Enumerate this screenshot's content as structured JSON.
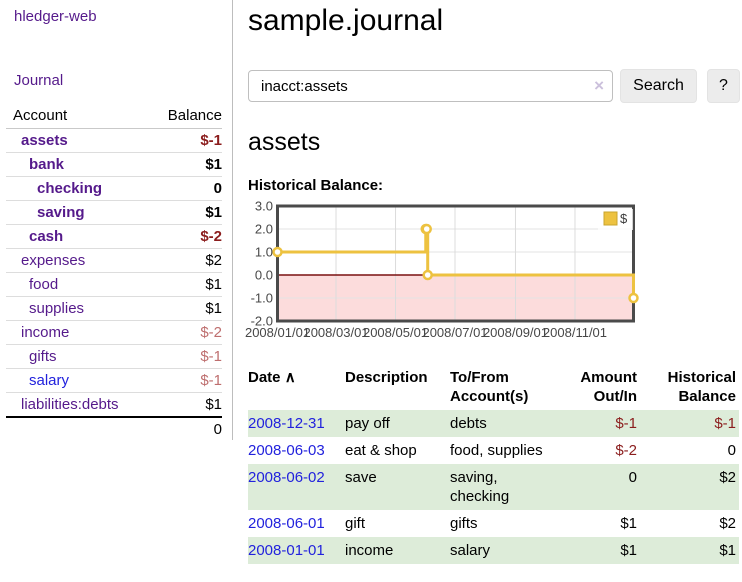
{
  "app": {
    "title": "hledger-web",
    "nav_journal": "Journal"
  },
  "colors": {
    "link_purple": "#551a8b",
    "link_blue": "#2222dd",
    "negative_strong": "#8b1d1d",
    "negative_light": "#be6e6e",
    "row_stripe_green": "#ddecd9",
    "chart_series_gold": "#edc240"
  },
  "sidebar": {
    "header": {
      "account": "Account",
      "balance": "Balance"
    },
    "accounts": [
      {
        "name": "assets",
        "balance": "$-1",
        "depth": 1,
        "bold": true,
        "negative": true
      },
      {
        "name": "bank",
        "balance": "$1",
        "depth": 2,
        "bold": true,
        "negative": false
      },
      {
        "name": "checking",
        "balance": "0",
        "depth": 3,
        "bold": true,
        "negative": false
      },
      {
        "name": "saving",
        "balance": "$1",
        "depth": 3,
        "bold": true,
        "negative": false
      },
      {
        "name": "cash",
        "balance": "$-2",
        "depth": 2,
        "bold": true,
        "negative": true
      },
      {
        "name": "expenses",
        "balance": "$2",
        "depth": 1,
        "bold": false,
        "negative": false
      },
      {
        "name": "food",
        "balance": "$1",
        "depth": 2,
        "bold": false,
        "negative": false
      },
      {
        "name": "supplies",
        "balance": "$1",
        "depth": 2,
        "bold": false,
        "negative": false
      },
      {
        "name": "income",
        "balance": "$-2",
        "depth": 1,
        "bold": false,
        "negative": true
      },
      {
        "name": "gifts",
        "balance": "$-1",
        "depth": 2,
        "bold": false,
        "negative": true
      },
      {
        "name": "salary",
        "balance": "$-1",
        "depth": 2,
        "bold": false,
        "negative": true,
        "unvisited": true
      },
      {
        "name": "liabilities:debts",
        "balance": "$1",
        "depth": 1,
        "bold": false,
        "negative": false
      }
    ],
    "total": "0"
  },
  "header": {
    "title": "sample.journal"
  },
  "search": {
    "value": "inacct:assets",
    "clear_icon": "×",
    "button_label": "Search",
    "help_label": "?"
  },
  "account_page": {
    "heading": "assets",
    "chart_title": "Historical Balance:"
  },
  "chart_data": {
    "type": "line",
    "title": "Historical Balance",
    "x_range": [
      "2008/01/01",
      "2008/12/31"
    ],
    "ylim": [
      -2,
      3
    ],
    "y_ticks": [
      3.0,
      2.0,
      1.0,
      0.0,
      -1.0,
      -2.0
    ],
    "x_ticks": [
      "2008/01/01",
      "2008/03/01",
      "2008/05/01",
      "2008/07/01",
      "2008/09/01",
      "2008/11/01"
    ],
    "grid": true,
    "legend_position": "top-right",
    "negative_region_color": "#fcdcdc",
    "zero_line_color": "#7a1010",
    "series": [
      {
        "name": "$",
        "color": "#edc240",
        "style": "step",
        "points": [
          {
            "date": "2008/01/01",
            "value": 1
          },
          {
            "date": "2008/06/01",
            "value": 2
          },
          {
            "date": "2008/06/02",
            "value": 2
          },
          {
            "date": "2008/06/03",
            "value": 0
          },
          {
            "date": "2008/12/31",
            "value": -1
          }
        ]
      }
    ]
  },
  "register": {
    "headers": {
      "date": "Date",
      "sort_icon": "∧",
      "description": "Description",
      "accounts_line1": "To/From",
      "accounts_line2": "Account(s)",
      "amount_line1": "Amount",
      "amount_line2": "Out/In",
      "balance_line1": "Historical",
      "balance_line2": "Balance"
    },
    "rows": [
      {
        "date": "2008-12-31",
        "description": "pay off",
        "accounts": "debts",
        "amount": "$-1",
        "amount_negative": true,
        "balance": "$-1",
        "balance_negative": true
      },
      {
        "date": "2008-06-03",
        "description": "eat & shop",
        "accounts": "food, supplies",
        "amount": "$-2",
        "amount_negative": true,
        "balance": "0",
        "balance_negative": false
      },
      {
        "date": "2008-06-02",
        "description": "save",
        "accounts": "saving, checking",
        "amount": "0",
        "amount_negative": false,
        "balance": "$2",
        "balance_negative": false
      },
      {
        "date": "2008-06-01",
        "description": "gift",
        "accounts": "gifts",
        "amount": "$1",
        "amount_negative": false,
        "balance": "$2",
        "balance_negative": false
      },
      {
        "date": "2008-01-01",
        "description": "income",
        "accounts": "salary",
        "amount": "$1",
        "amount_negative": false,
        "balance": "$1",
        "balance_negative": false
      }
    ]
  }
}
